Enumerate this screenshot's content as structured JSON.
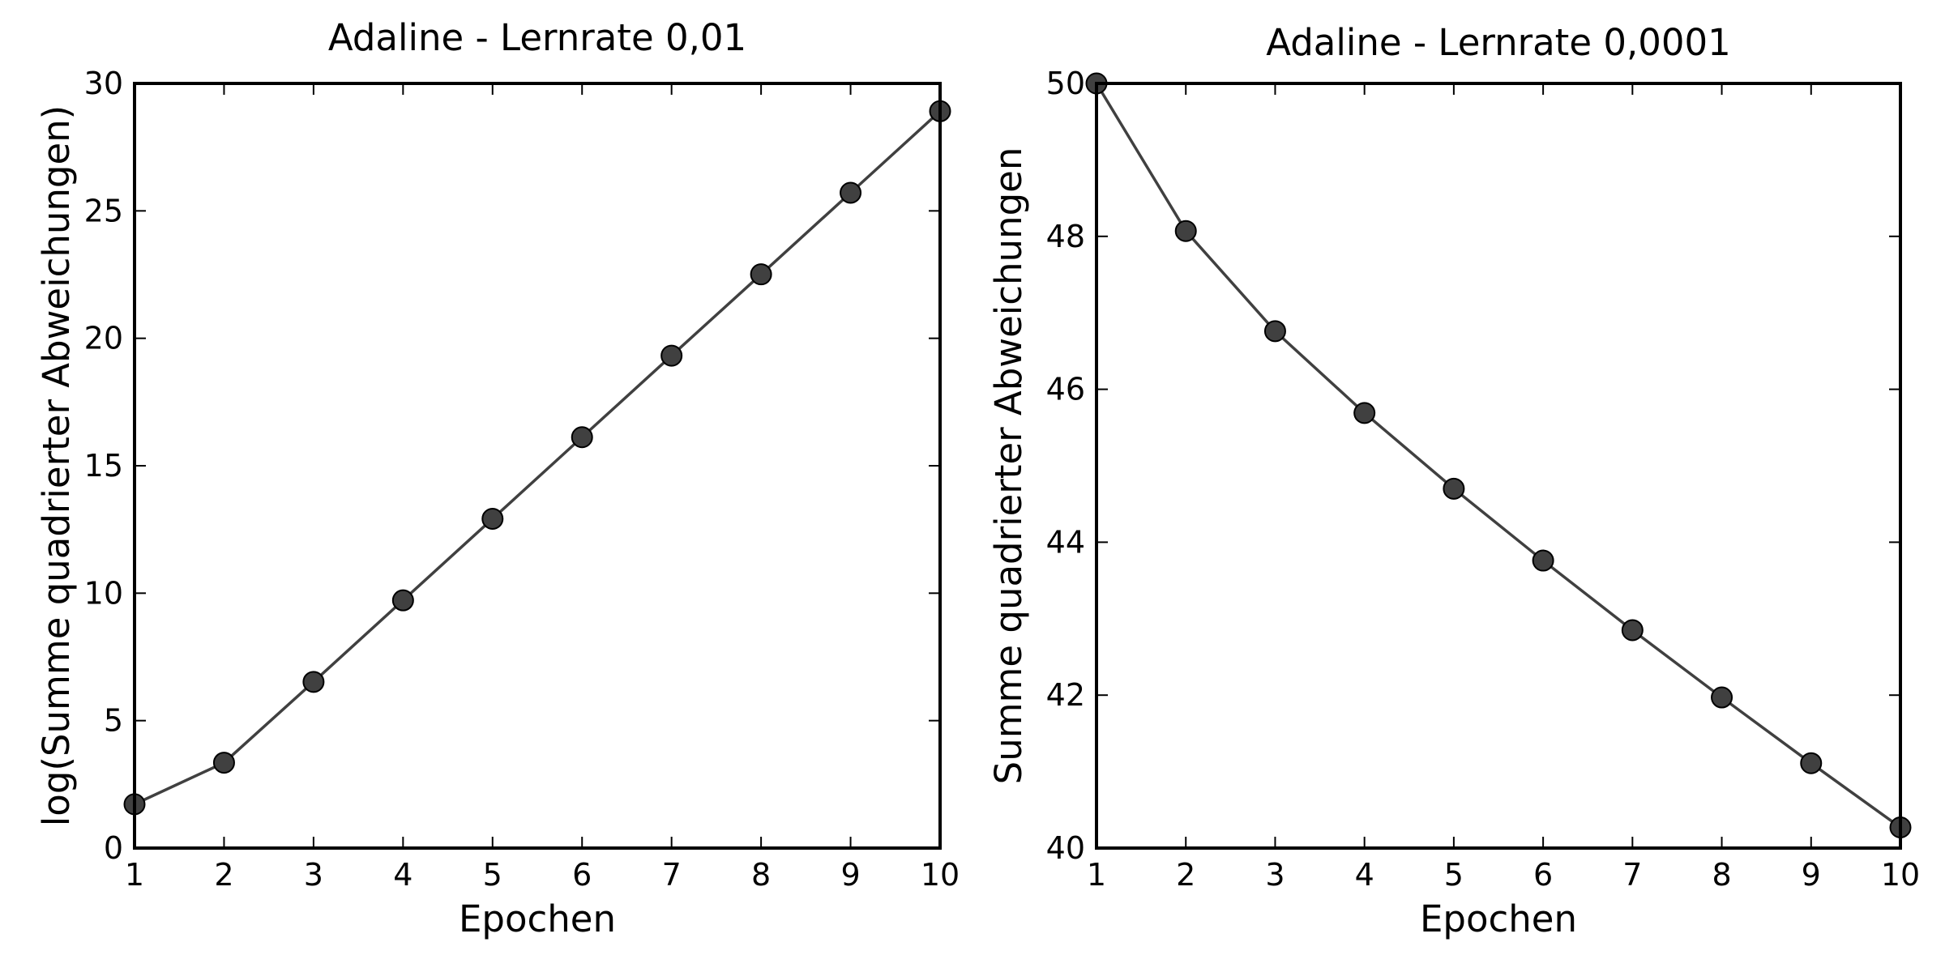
{
  "chart_data": [
    {
      "type": "line",
      "title": "Adaline - Lernrate 0,01",
      "xlabel": "Epochen",
      "ylabel": "log(Summe quadrierter Abweichungen)",
      "x": [
        1,
        2,
        3,
        4,
        5,
        6,
        7,
        8,
        9,
        10
      ],
      "series": [
        {
          "values": [
            1.72,
            3.35,
            6.52,
            9.72,
            12.92,
            16.12,
            19.32,
            22.51,
            25.71,
            28.91
          ]
        }
      ],
      "xlim": [
        1,
        10
      ],
      "ylim": [
        0,
        30
      ],
      "xticks": [
        1,
        2,
        3,
        4,
        5,
        6,
        7,
        8,
        9,
        10
      ],
      "yticks": [
        0,
        5,
        10,
        15,
        20,
        25,
        30
      ],
      "grid": false,
      "marker": "circle",
      "colors": {
        "line": "#404040",
        "marker": "#404040"
      }
    },
    {
      "type": "line",
      "title": "Adaline - Lernrate 0,0001",
      "xlabel": "Epochen",
      "ylabel": "Summe quadrierter Abweichungen",
      "x": [
        1,
        2,
        3,
        4,
        5,
        6,
        7,
        8,
        9,
        10
      ],
      "series": [
        {
          "values": [
            50.0,
            48.07,
            46.76,
            45.69,
            44.7,
            43.76,
            42.85,
            41.97,
            41.11,
            40.27
          ]
        }
      ],
      "xlim": [
        1,
        10
      ],
      "ylim": [
        40,
        50
      ],
      "xticks": [
        1,
        2,
        3,
        4,
        5,
        6,
        7,
        8,
        9,
        10
      ],
      "yticks": [
        40,
        42,
        44,
        46,
        48,
        50
      ],
      "grid": false,
      "marker": "circle",
      "colors": {
        "line": "#404040",
        "marker": "#404040"
      }
    }
  ]
}
